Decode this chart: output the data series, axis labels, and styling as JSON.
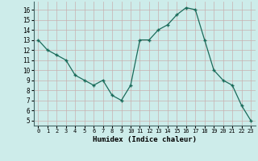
{
  "x": [
    0,
    1,
    2,
    3,
    4,
    5,
    6,
    7,
    8,
    9,
    10,
    11,
    12,
    13,
    14,
    15,
    16,
    17,
    18,
    19,
    20,
    21,
    22,
    23
  ],
  "y": [
    13,
    12,
    11.5,
    11,
    9.5,
    9,
    8.5,
    9,
    7.5,
    7,
    8.5,
    13,
    13,
    14,
    14.5,
    15.5,
    16.2,
    16,
    13,
    10,
    9,
    8.5,
    6.5,
    5
  ],
  "xlabel": "Humidex (Indice chaleur)",
  "line_color": "#1a6b5a",
  "marker": "+",
  "bg_color": "#cdecea",
  "grid_color": "#c8b0b0",
  "xlim": [
    -0.5,
    23.5
  ],
  "ylim": [
    4.5,
    16.8
  ],
  "yticks": [
    5,
    6,
    7,
    8,
    9,
    10,
    11,
    12,
    13,
    14,
    15,
    16
  ],
  "xticks": [
    0,
    1,
    2,
    3,
    4,
    5,
    6,
    7,
    8,
    9,
    10,
    11,
    12,
    13,
    14,
    15,
    16,
    17,
    18,
    19,
    20,
    21,
    22,
    23
  ]
}
